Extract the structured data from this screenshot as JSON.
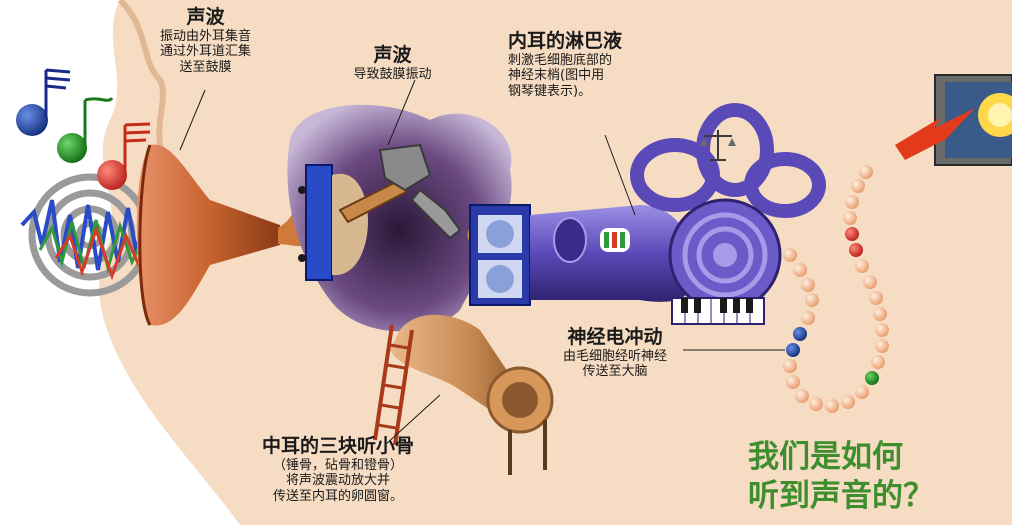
{
  "labels": {
    "outer_sound": {
      "title": "声波",
      "lines": [
        "振动由外耳集音",
        "通过外耳道汇集",
        "送至鼓膜"
      ]
    },
    "eardrum_sound": {
      "title": "声波",
      "lines": [
        "导致鼓膜振动"
      ]
    },
    "lymph": {
      "title": "内耳的淋巴液",
      "lines": [
        "刺激毛细胞底部的",
        "神经末梢(图中用",
        "钢琴键表示)。"
      ]
    },
    "nerve": {
      "title": "神经电冲动",
      "lines": [
        "由毛细胞经听神经",
        "传送至大脑"
      ]
    },
    "ossicles": {
      "title": "中耳的三块听小骨",
      "lines": [
        "（锤骨，砧骨和镫骨）",
        "将声波震动放大并",
        "传送至内耳的卵圆窗。"
      ]
    }
  },
  "title_lines": [
    "我们是如何",
    "听到声音的？"
  ],
  "colors": {
    "skin": "#f5dcc2",
    "skin_dark": "#e2b894",
    "horn": "#c8642e",
    "cavity": "#5a3a6a",
    "cochlea": "#6a5bc8",
    "title": "#3e8e2e",
    "lightning": "#e23a1a"
  }
}
